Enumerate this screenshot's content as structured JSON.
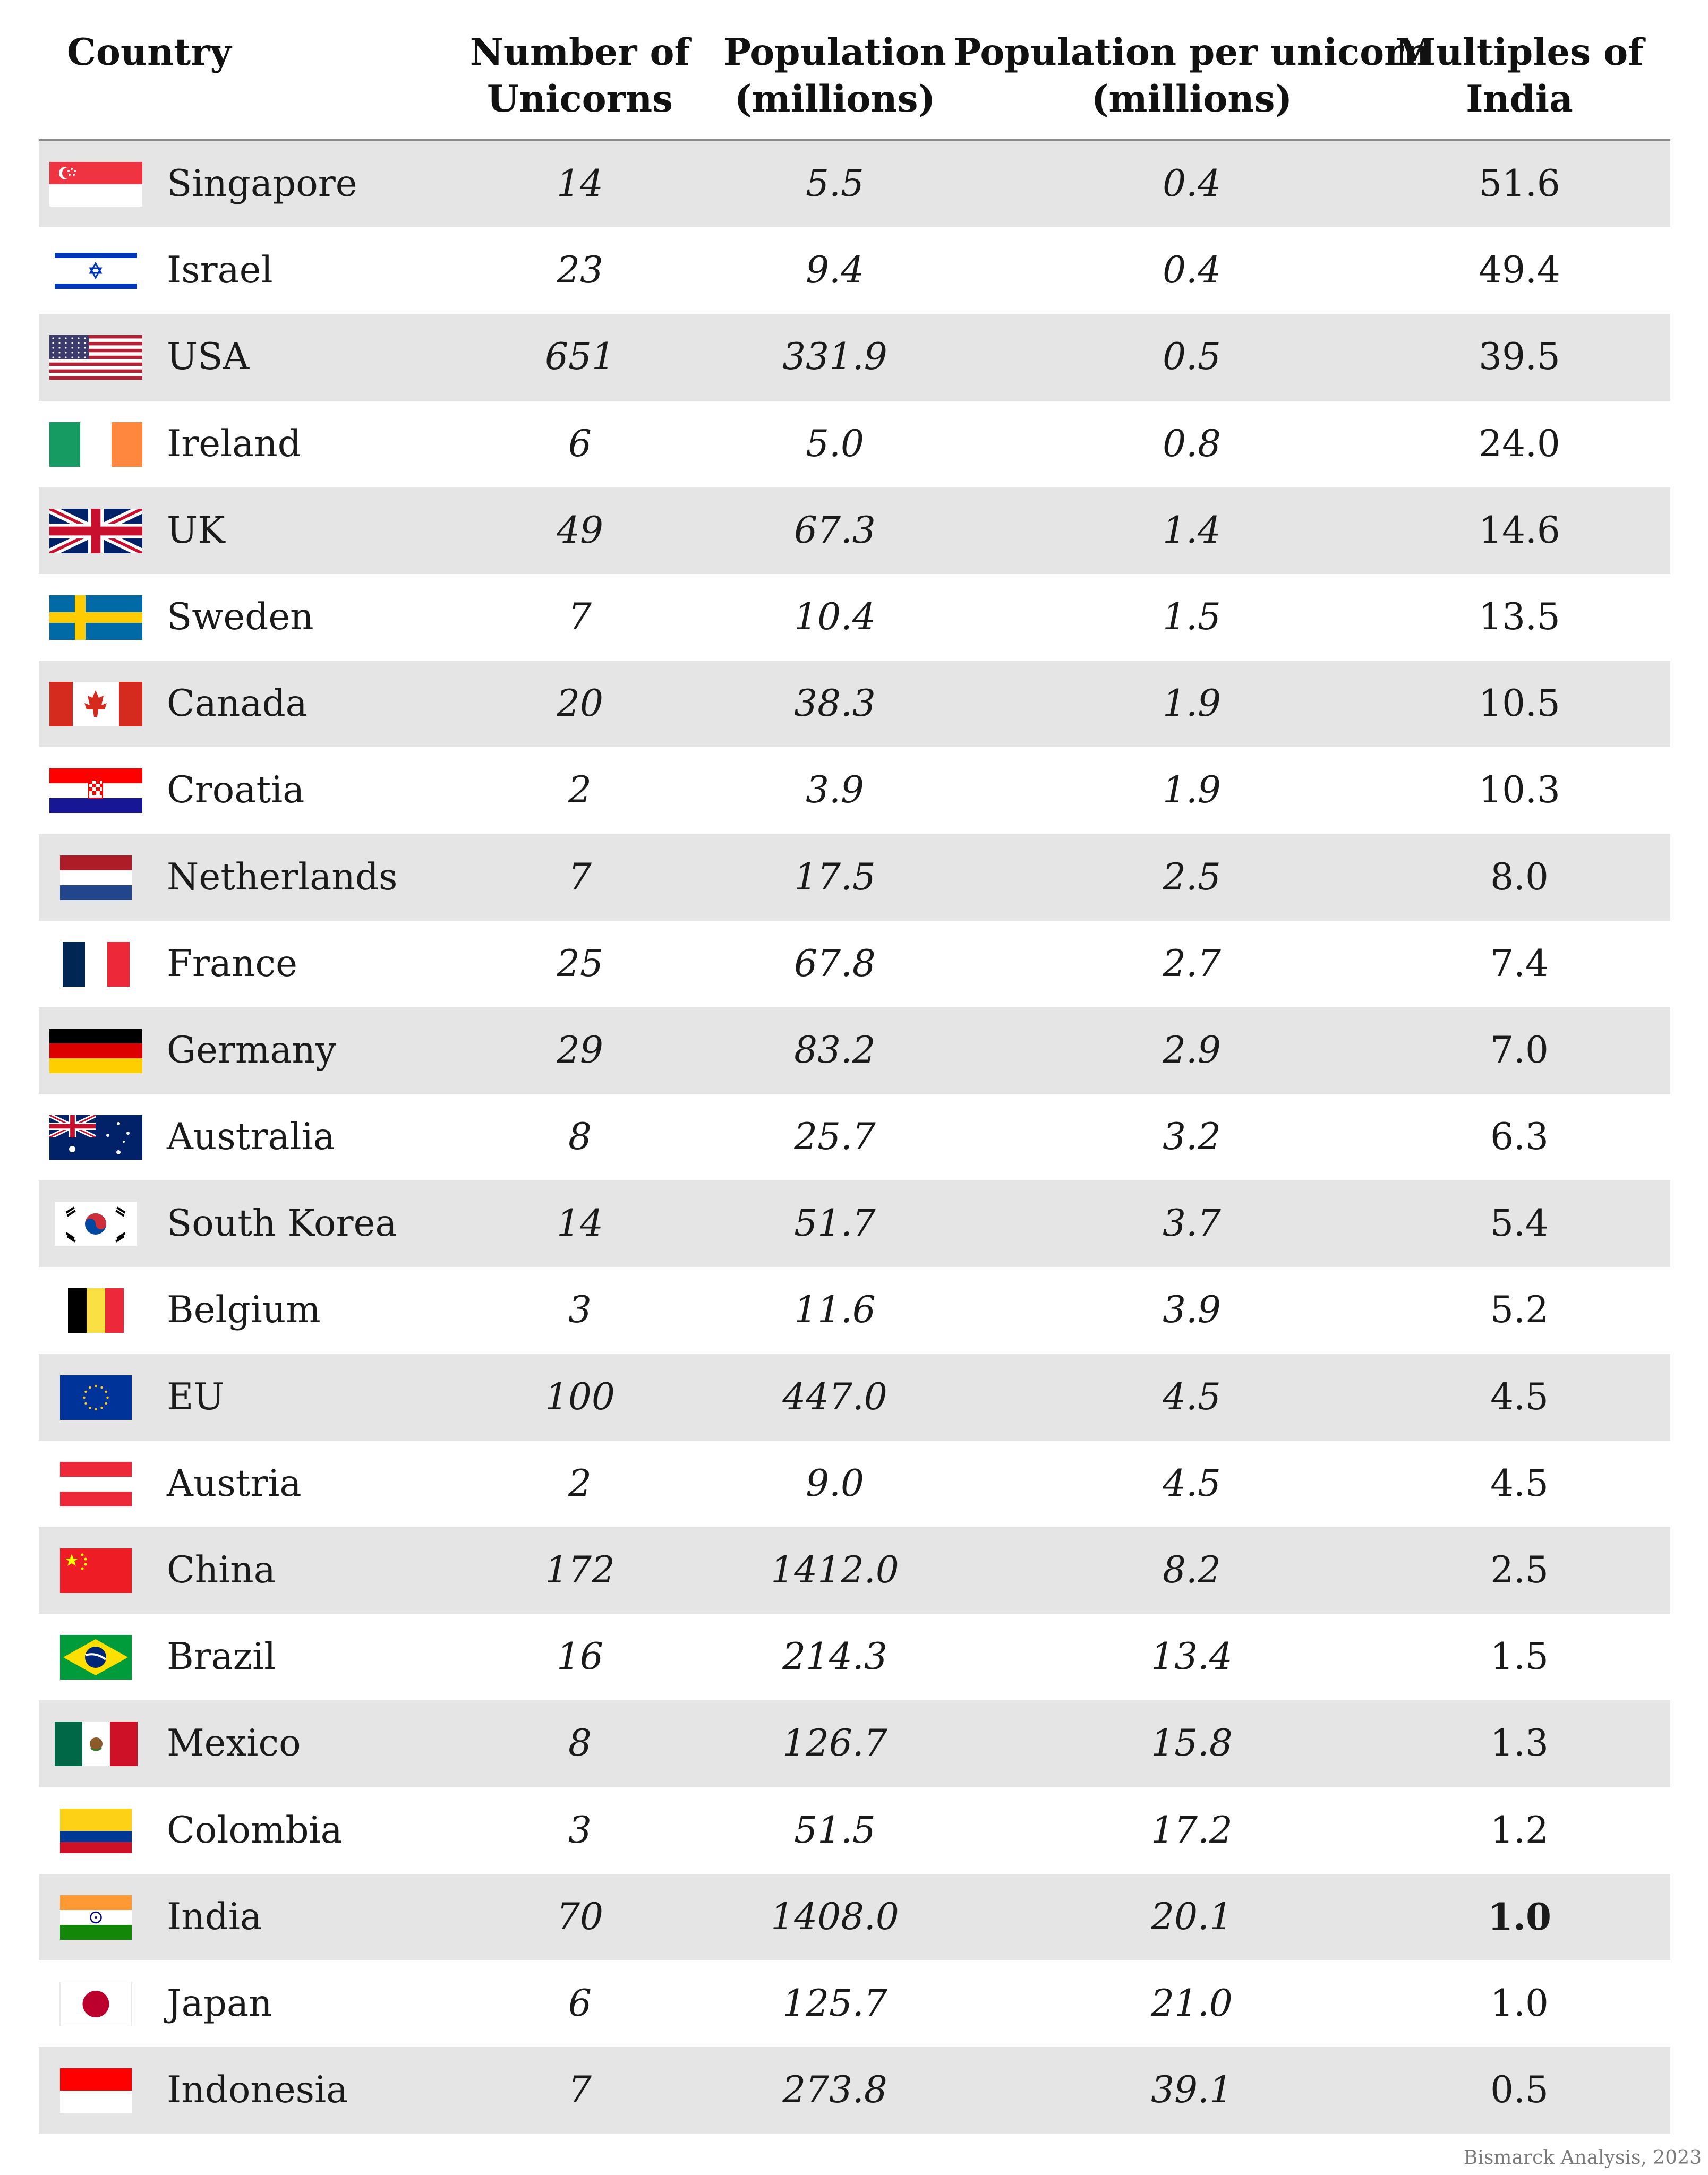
{
  "chart_data": {
    "type": "table",
    "columns": [
      "Country",
      "Number of\nUnicorns",
      "Population\n(millions)",
      "Population per unicorn\n(millions)",
      "Multiples of\nIndia"
    ],
    "rows": [
      {
        "flag": "flag-singapore",
        "country": "Singapore",
        "unicorns": "14",
        "population": "5.5",
        "per_unicorn": "0.4",
        "multiple": "51.6"
      },
      {
        "flag": "flag-israel",
        "country": "Israel",
        "unicorns": "23",
        "population": "9.4",
        "per_unicorn": "0.4",
        "multiple": "49.4"
      },
      {
        "flag": "flag-usa",
        "country": "USA",
        "unicorns": "651",
        "population": "331.9",
        "per_unicorn": "0.5",
        "multiple": "39.5"
      },
      {
        "flag": "flag-ireland",
        "country": "Ireland",
        "unicorns": "6",
        "population": "5.0",
        "per_unicorn": "0.8",
        "multiple": "24.0"
      },
      {
        "flag": "flag-uk",
        "country": "UK",
        "unicorns": "49",
        "population": "67.3",
        "per_unicorn": "1.4",
        "multiple": "14.6"
      },
      {
        "flag": "flag-sweden",
        "country": "Sweden",
        "unicorns": "7",
        "population": "10.4",
        "per_unicorn": "1.5",
        "multiple": "13.5"
      },
      {
        "flag": "flag-canada",
        "country": "Canada",
        "unicorns": "20",
        "population": "38.3",
        "per_unicorn": "1.9",
        "multiple": "10.5"
      },
      {
        "flag": "flag-croatia",
        "country": "Croatia",
        "unicorns": "2",
        "population": "3.9",
        "per_unicorn": "1.9",
        "multiple": "10.3"
      },
      {
        "flag": "flag-netherlands",
        "country": "Netherlands",
        "unicorns": "7",
        "population": "17.5",
        "per_unicorn": "2.5",
        "multiple": "8.0"
      },
      {
        "flag": "flag-france",
        "country": "France",
        "unicorns": "25",
        "population": "67.8",
        "per_unicorn": "2.7",
        "multiple": "7.4"
      },
      {
        "flag": "flag-germany",
        "country": "Germany",
        "unicorns": "29",
        "population": "83.2",
        "per_unicorn": "2.9",
        "multiple": "7.0"
      },
      {
        "flag": "flag-australia",
        "country": "Australia",
        "unicorns": "8",
        "population": "25.7",
        "per_unicorn": "3.2",
        "multiple": "6.3"
      },
      {
        "flag": "flag-south-korea",
        "country": "South Korea",
        "unicorns": "14",
        "population": "51.7",
        "per_unicorn": "3.7",
        "multiple": "5.4"
      },
      {
        "flag": "flag-belgium",
        "country": "Belgium",
        "unicorns": "3",
        "population": "11.6",
        "per_unicorn": "3.9",
        "multiple": "5.2"
      },
      {
        "flag": "flag-eu",
        "country": "EU",
        "unicorns": "100",
        "population": "447.0",
        "per_unicorn": "4.5",
        "multiple": "4.5"
      },
      {
        "flag": "flag-austria",
        "country": "Austria",
        "unicorns": "2",
        "population": "9.0",
        "per_unicorn": "4.5",
        "multiple": "4.5"
      },
      {
        "flag": "flag-china",
        "country": "China",
        "unicorns": "172",
        "population": "1412.0",
        "per_unicorn": "8.2",
        "multiple": "2.5"
      },
      {
        "flag": "flag-brazil",
        "country": "Brazil",
        "unicorns": "16",
        "population": "214.3",
        "per_unicorn": "13.4",
        "multiple": "1.5"
      },
      {
        "flag": "flag-mexico",
        "country": "Mexico",
        "unicorns": "8",
        "population": "126.7",
        "per_unicorn": "15.8",
        "multiple": "1.3"
      },
      {
        "flag": "flag-colombia",
        "country": "Colombia",
        "unicorns": "3",
        "population": "51.5",
        "per_unicorn": "17.2",
        "multiple": "1.2"
      },
      {
        "flag": "flag-india",
        "country": "India",
        "unicorns": "70",
        "population": "1408.0",
        "per_unicorn": "20.1",
        "multiple": "1.0",
        "emphasis": true
      },
      {
        "flag": "flag-japan",
        "country": "Japan",
        "unicorns": "6",
        "population": "125.7",
        "per_unicorn": "21.0",
        "multiple": "1.0"
      },
      {
        "flag": "flag-indonesia",
        "country": "Indonesia",
        "unicorns": "7",
        "population": "273.8",
        "per_unicorn": "39.1",
        "multiple": "0.5"
      }
    ],
    "row_shading": {
      "alternating": true,
      "shaded_color": "#e5e5e5",
      "plain_color": "#ffffff",
      "first_row_shaded": true
    },
    "source": "Bismarck Analysis, 2023"
  }
}
